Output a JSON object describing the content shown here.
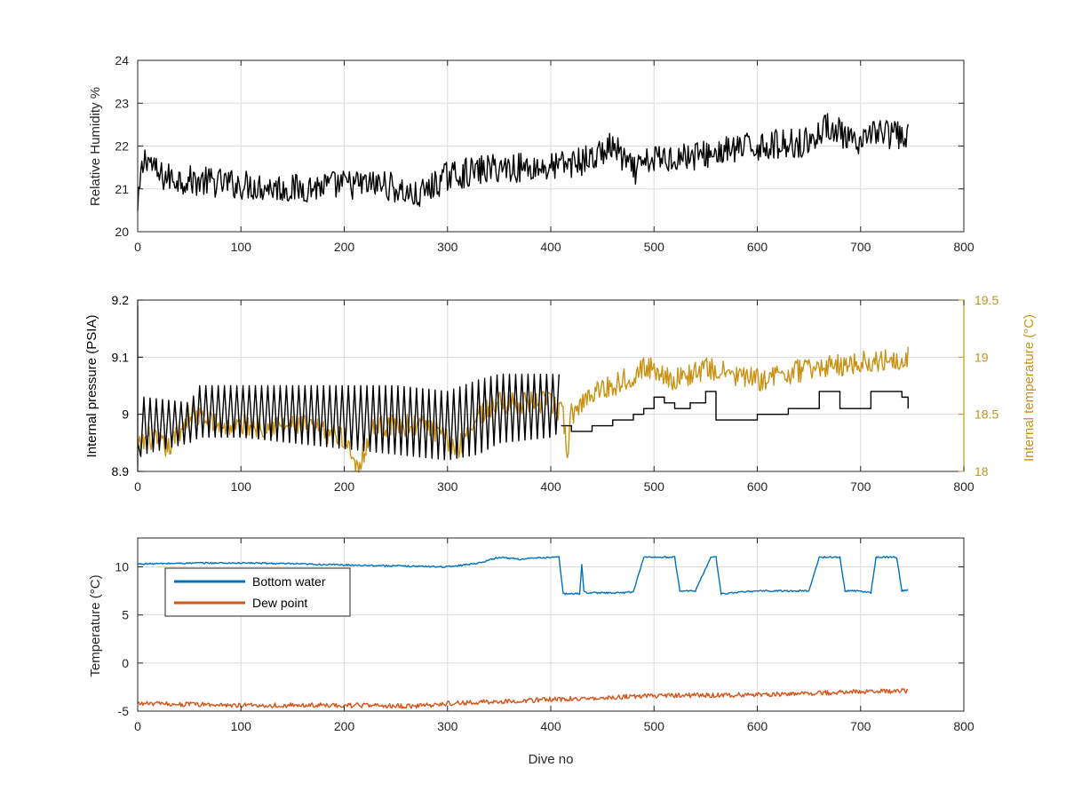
{
  "figure": {
    "xlabel_bottom": "Dive no"
  },
  "colors": {
    "black": "#000000",
    "gold": "#C99215",
    "blue": "#0072BD",
    "orange": "#D95319",
    "grid": "#dcdcdc",
    "axis": "#262626"
  },
  "chart_data": [
    {
      "type": "line",
      "title": "",
      "xlabel": "",
      "ylabel": "Relative Humidity %",
      "xlim": [
        0,
        800
      ],
      "ylim": [
        20,
        24
      ],
      "xticks": [
        "0",
        "100",
        "200",
        "300",
        "400",
        "500",
        "600",
        "700",
        "800"
      ],
      "yticks": [
        "20",
        "21",
        "22",
        "23",
        "24"
      ],
      "grid": true,
      "series": [
        {
          "color": "#000000",
          "style": "noisy",
          "noise": 0.35,
          "x": [
            0,
            3,
            8,
            20,
            50,
            100,
            150,
            200,
            240,
            270,
            300,
            350,
            400,
            440,
            460,
            480,
            500,
            550,
            600,
            650,
            670,
            700,
            710,
            720,
            746
          ],
          "y": [
            20.4,
            21.3,
            21.8,
            21.3,
            21.2,
            21.1,
            21.0,
            21.1,
            21.1,
            20.8,
            21.3,
            21.5,
            21.5,
            21.7,
            22.0,
            21.4,
            21.7,
            21.8,
            22.0,
            22.1,
            22.5,
            21.9,
            22.4,
            22.3,
            22.2
          ]
        }
      ]
    },
    {
      "type": "line",
      "title": "",
      "xlabel": "",
      "ylabel": "Internal pressure (PSIA)",
      "ylabel_right": "Internal temperature (°C)",
      "xlim": [
        0,
        800
      ],
      "ylim": [
        8.9,
        9.2
      ],
      "ylim_right": [
        18,
        19.5
      ],
      "xticks": [
        "0",
        "100",
        "200",
        "300",
        "400",
        "500",
        "600",
        "700",
        "800"
      ],
      "yticks": [
        "8.9",
        "9",
        "9.1",
        "9.2"
      ],
      "yticks_right": [
        "18",
        "18.5",
        "19",
        "19.5"
      ],
      "grid": true,
      "series": [
        {
          "axis": "right",
          "color": "#C99215",
          "style": "noisy",
          "noise": 0.1,
          "x": [
            0,
            10,
            30,
            50,
            80,
            120,
            160,
            200,
            213,
            230,
            280,
            310,
            330,
            350,
            400,
            412,
            416,
            420,
            440,
            460,
            490,
            500,
            520,
            550,
            600,
            650,
            700,
            746
          ],
          "y": [
            18.2,
            18.3,
            18.2,
            18.5,
            18.4,
            18.4,
            18.4,
            18.3,
            18.05,
            18.4,
            18.4,
            18.2,
            18.5,
            18.6,
            18.6,
            18.5,
            18.15,
            18.5,
            18.7,
            18.75,
            18.9,
            18.9,
            18.8,
            18.9,
            18.8,
            18.9,
            18.95,
            19.0
          ]
        },
        {
          "axis": "left",
          "color": "#000000",
          "style": "sawtooth",
          "period": 6,
          "x": [
            0,
            5,
            50,
            60,
            100,
            150,
            200,
            250,
            300,
            330,
            350,
            400,
            410
          ],
          "y": [
            8.95,
            9.03,
            9.02,
            9.05,
            9.05,
            9.05,
            9.05,
            9.05,
            9.04,
            9.06,
            9.07,
            9.07,
            9.07
          ],
          "y_low": [
            8.92,
            8.93,
            8.95,
            8.96,
            8.96,
            8.95,
            8.94,
            8.93,
            8.92,
            8.93,
            8.95,
            8.96,
            8.97
          ]
        },
        {
          "axis": "left",
          "color": "#000000",
          "style": "steps",
          "x": [
            410,
            420,
            440,
            460,
            480,
            490,
            500,
            510,
            520,
            535,
            550,
            560,
            580,
            600,
            630,
            655,
            660,
            680,
            700,
            710,
            740,
            746
          ],
          "y": [
            8.98,
            8.97,
            8.98,
            8.99,
            9.0,
            9.01,
            9.03,
            9.02,
            9.01,
            9.02,
            9.04,
            8.99,
            8.99,
            9.0,
            9.01,
            9.01,
            9.04,
            9.01,
            9.01,
            9.04,
            9.03,
            9.01
          ]
        }
      ]
    },
    {
      "type": "line",
      "title": "",
      "xlabel": "Dive no",
      "ylabel": "Temperature (°C)",
      "xlim": [
        0,
        800
      ],
      "ylim": [
        -5,
        13
      ],
      "xticks": [
        "0",
        "100",
        "200",
        "300",
        "400",
        "500",
        "600",
        "700",
        "800"
      ],
      "yticks": [
        "-5",
        "0",
        "5",
        "10"
      ],
      "grid": true,
      "legend": {
        "position": "top-left",
        "entries": [
          {
            "label": "Bottom water",
            "color": "#0072BD"
          },
          {
            "label": "Dew point",
            "color": "#D95319"
          }
        ]
      },
      "series": [
        {
          "name": "Bottom water",
          "color": "#0072BD",
          "style": "noisy",
          "noise": 0.08,
          "x": [
            0,
            60,
            110,
            200,
            300,
            330,
            350,
            370,
            400,
            408,
            412,
            418,
            428,
            430,
            432,
            436,
            470,
            480,
            490,
            520,
            525,
            540,
            555,
            560,
            565,
            600,
            650,
            660,
            680,
            685,
            700,
            710,
            715,
            735,
            740,
            746
          ],
          "y": [
            10.3,
            10.4,
            10.4,
            10.2,
            10.0,
            10.4,
            11.0,
            10.8,
            11.0,
            11.0,
            7.2,
            7.2,
            7.2,
            10.3,
            7.5,
            7.3,
            7.3,
            7.4,
            11.0,
            11.0,
            7.5,
            7.5,
            11.0,
            11.0,
            7.2,
            7.5,
            7.5,
            11.0,
            11.0,
            7.5,
            7.5,
            7.3,
            11.0,
            11.0,
            7.5,
            7.6
          ]
        },
        {
          "name": "Dew point",
          "color": "#D95319",
          "style": "noisy",
          "noise": 0.25,
          "x": [
            0,
            100,
            200,
            270,
            300,
            400,
            500,
            600,
            700,
            746
          ],
          "y": [
            -4.2,
            -4.4,
            -4.4,
            -4.5,
            -4.2,
            -3.8,
            -3.4,
            -3.3,
            -3.0,
            -2.9
          ]
        }
      ]
    }
  ]
}
